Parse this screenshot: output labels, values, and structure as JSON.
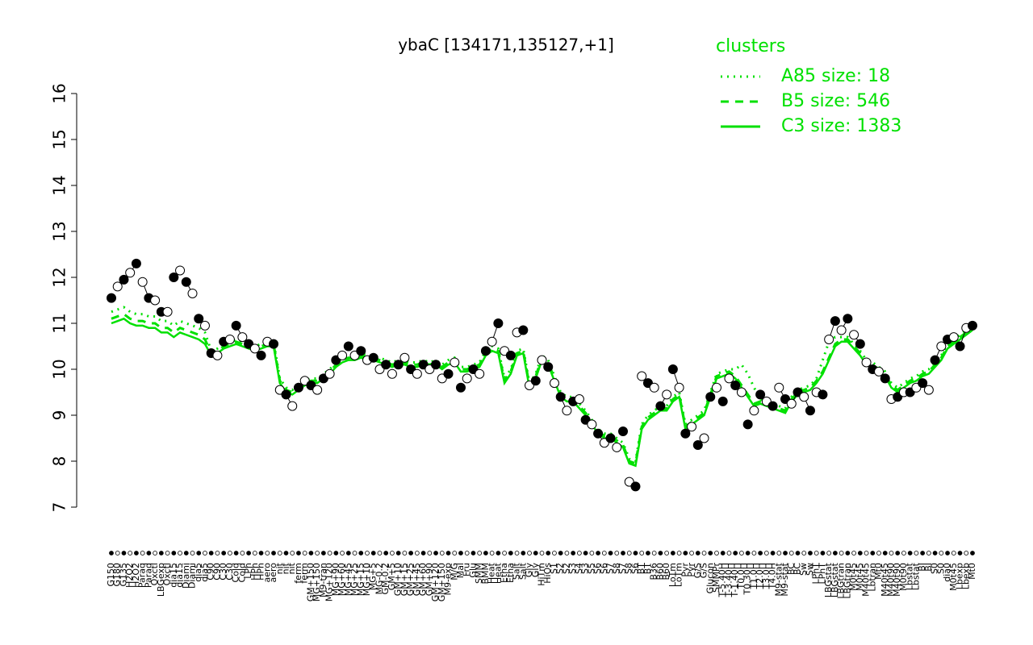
{
  "chart_data": {
    "type": "line",
    "title": "ybaC [134171,135127,+1]",
    "legend_title": "clusters",
    "legend": "top-right",
    "categories": [
      "G150",
      "G180",
      "G135",
      "H2O2",
      "H2O2",
      "Paraq",
      "Paraq",
      "Oxctl",
      "LBGexp",
      "Oxctl",
      "dia15",
      "dia15",
      "Diami",
      "Diami",
      "dia5",
      "dia5",
      "C90",
      "C90",
      "C30",
      "C30",
      "Cold",
      "Cold",
      "LPh",
      "HPh",
      "HPh",
      "aero",
      "aero",
      "nit",
      "nit",
      "nit",
      "ferm",
      "ferm",
      "GM+150",
      "MG+150",
      "M9-tran",
      "MG+120",
      "MG+90",
      "MG+60",
      "MG+45",
      "MG+25",
      "MG+15",
      "MG+10",
      "MG+5",
      "MG-0.2",
      "GM-0.2",
      "GM+5",
      "GM+10",
      "GM+15",
      "GM+25",
      "GM+45",
      "GM+60",
      "GM+90",
      "GM+120",
      "GM+150",
      "M9-exp",
      "M/G",
      "Mal",
      "Fru",
      "Glu",
      "SMM",
      "BMM",
      "Heat",
      "Heat",
      "Etha",
      "Etha",
      "Salt",
      "Salt",
      "Gly",
      "Gly",
      "HiTm",
      "HiOs",
      "S1",
      "S2",
      "S2",
      "S3",
      "S4",
      "S3",
      "S5",
      "S6",
      "S6",
      "S7",
      "S8",
      "S7",
      "S8",
      "S6",
      "BT",
      "BT",
      "B36",
      "B60",
      "B60",
      "LoTm",
      "LoTm",
      "Pyr",
      "Pyr",
      "G/S",
      "G/S",
      "Glucon",
      "SMMPr",
      "T-5.40H",
      "T-3.40H",
      "T-1.40H",
      "T0.0H",
      "T0.30H",
      "T1.0H",
      "T2.0H",
      "T3.0H",
      "T4.0H",
      "M9-stat",
      "M9-stat",
      "BC",
      "BC",
      "Sw",
      "Sw",
      "LPhT",
      "LPhT",
      "LBGstat",
      "LBGstat",
      "LBGtran",
      "LBGtran",
      "M0t45",
      "M0t45",
      "M40t45",
      "Lbtran",
      "Mt0",
      "M40t45",
      "M40t90",
      "M40t90",
      "M0t90",
      "Lbstat",
      "Lbstat",
      "BI",
      "BI",
      "S0",
      "S0",
      "dia0",
      "M0t45",
      "Lbexp",
      "Lbexp",
      "Mt0"
    ],
    "points": [
      11.55,
      11.8,
      11.95,
      12.1,
      12.3,
      11.9,
      11.55,
      11.5,
      11.25,
      11.25,
      12.0,
      12.15,
      11.9,
      11.65,
      11.1,
      10.95,
      10.35,
      10.3,
      10.6,
      10.65,
      10.95,
      10.7,
      10.55,
      10.45,
      10.3,
      10.6,
      10.55,
      9.55,
      9.45,
      9.2,
      9.6,
      9.75,
      9.65,
      9.55,
      9.8,
      9.9,
      10.2,
      10.3,
      10.5,
      10.3,
      10.4,
      10.2,
      10.25,
      10.0,
      10.1,
      9.9,
      10.1,
      10.25,
      10.0,
      9.9,
      10.1,
      10.0,
      10.1,
      9.8,
      9.9,
      10.15,
      9.6,
      9.8,
      10.0,
      9.9,
      10.4,
      10.6,
      11.0,
      10.4,
      10.3,
      10.8,
      10.85,
      9.65,
      9.75,
      10.2,
      10.05,
      9.7,
      9.4,
      9.1,
      9.3,
      9.35,
      8.9,
      8.8,
      8.6,
      8.4,
      8.5,
      8.3,
      8.65,
      7.55,
      7.45,
      9.85,
      9.7,
      9.6,
      9.2,
      9.45,
      10.0,
      9.6,
      8.6,
      8.75,
      8.35,
      8.5,
      9.4,
      9.6,
      9.3,
      9.8,
      9.65,
      9.5,
      8.8,
      9.1,
      9.45,
      9.3,
      9.2,
      9.6,
      9.35,
      9.25,
      9.5,
      9.4,
      9.1,
      9.5,
      9.45,
      10.65,
      11.05,
      10.85,
      11.1,
      10.75,
      10.55,
      10.15,
      10.0,
      9.95,
      9.8,
      9.35,
      9.4,
      9.5,
      9.5,
      9.6,
      9.7,
      9.55,
      10.2,
      10.5,
      10.65,
      10.7,
      10.5,
      10.9,
      10.95
    ],
    "point_color": "#000000",
    "series": [
      {
        "name": "A85 size: 18",
        "color": "#00e000",
        "linestyle": "dotted",
        "values": [
          11.25,
          11.3,
          11.35,
          11.25,
          11.2,
          11.2,
          11.15,
          11.15,
          11.05,
          11.05,
          10.95,
          11.05,
          11.0,
          10.95,
          10.9,
          10.8,
          10.4,
          10.45,
          10.55,
          10.6,
          10.65,
          10.6,
          10.55,
          10.5,
          10.55,
          10.6,
          10.6,
          9.8,
          9.6,
          9.55,
          9.65,
          9.75,
          9.8,
          9.8,
          9.9,
          10.0,
          10.15,
          10.25,
          10.3,
          10.3,
          10.35,
          10.3,
          10.3,
          10.25,
          10.2,
          10.15,
          10.2,
          10.2,
          10.15,
          10.15,
          10.2,
          10.15,
          10.2,
          10.1,
          10.2,
          10.25,
          10.05,
          10.05,
          10.1,
          10.15,
          10.4,
          10.5,
          10.45,
          9.8,
          10.0,
          10.4,
          10.45,
          9.7,
          9.9,
          10.3,
          10.2,
          9.85,
          9.5,
          9.4,
          9.4,
          9.25,
          9.1,
          8.9,
          8.7,
          8.6,
          8.6,
          8.5,
          8.4,
          8.05,
          8.0,
          8.8,
          9.0,
          9.1,
          9.2,
          9.2,
          9.4,
          9.5,
          8.8,
          8.9,
          9.0,
          9.1,
          9.5,
          9.9,
          9.95,
          10.0,
          10.0,
          10.1,
          9.9,
          9.6,
          9.35,
          9.3,
          9.25,
          9.2,
          9.15,
          9.4,
          9.55,
          9.6,
          9.65,
          9.8,
          10.2,
          10.6,
          10.7,
          10.7,
          10.7,
          10.55,
          10.4,
          10.2,
          10.15,
          10.05,
          9.95,
          9.7,
          9.6,
          9.7,
          9.8,
          9.85,
          9.95,
          10.0,
          10.15,
          10.3,
          10.55,
          10.65,
          10.75,
          10.85,
          10.95
        ]
      },
      {
        "name": "B5 size: 546",
        "color": "#00e000",
        "linestyle": "dashed",
        "values": [
          11.1,
          11.15,
          11.2,
          11.1,
          11.05,
          11.05,
          11.0,
          11.0,
          10.9,
          10.9,
          10.8,
          10.9,
          10.85,
          10.8,
          10.75,
          10.65,
          10.35,
          10.4,
          10.5,
          10.55,
          10.6,
          10.55,
          10.5,
          10.45,
          10.5,
          10.55,
          10.55,
          9.75,
          9.55,
          9.5,
          9.6,
          9.7,
          9.75,
          9.75,
          9.85,
          9.95,
          10.1,
          10.2,
          10.25,
          10.25,
          10.3,
          10.25,
          10.25,
          10.2,
          10.15,
          10.1,
          10.15,
          10.15,
          10.1,
          10.1,
          10.15,
          10.1,
          10.15,
          10.05,
          10.15,
          10.2,
          10.0,
          10.0,
          10.05,
          10.1,
          10.35,
          10.45,
          10.4,
          9.75,
          9.95,
          10.35,
          10.4,
          9.65,
          9.85,
          10.25,
          10.15,
          9.8,
          9.45,
          9.35,
          9.35,
          9.2,
          9.05,
          8.85,
          8.65,
          8.55,
          8.55,
          8.45,
          8.35,
          8.0,
          7.95,
          8.75,
          8.95,
          9.05,
          9.15,
          9.15,
          9.35,
          9.45,
          8.75,
          8.85,
          8.95,
          9.05,
          9.45,
          9.85,
          9.9,
          9.95,
          9.85,
          9.65,
          9.45,
          9.25,
          9.3,
          9.25,
          9.2,
          9.15,
          9.1,
          9.35,
          9.5,
          9.55,
          9.6,
          9.75,
          9.95,
          10.25,
          10.55,
          10.65,
          10.65,
          10.5,
          10.35,
          10.15,
          10.1,
          10.0,
          9.9,
          9.65,
          9.55,
          9.65,
          9.75,
          9.8,
          9.9,
          9.95,
          10.1,
          10.25,
          10.5,
          10.6,
          10.7,
          10.8,
          10.9
        ]
      },
      {
        "name": "C3 size: 1383",
        "color": "#00e000",
        "linestyle": "solid",
        "values": [
          11.0,
          11.05,
          11.1,
          11.0,
          10.95,
          10.95,
          10.9,
          10.9,
          10.8,
          10.8,
          10.7,
          10.8,
          10.75,
          10.7,
          10.65,
          10.55,
          10.3,
          10.35,
          10.45,
          10.5,
          10.55,
          10.5,
          10.45,
          10.4,
          10.45,
          10.5,
          10.5,
          9.7,
          9.5,
          9.45,
          9.55,
          9.65,
          9.7,
          9.7,
          9.8,
          9.9,
          10.05,
          10.15,
          10.2,
          10.2,
          10.25,
          10.2,
          10.2,
          10.15,
          10.1,
          10.05,
          10.1,
          10.1,
          10.05,
          10.05,
          10.1,
          10.05,
          10.1,
          10.0,
          10.1,
          10.15,
          9.95,
          9.95,
          10.0,
          10.05,
          10.3,
          10.4,
          10.35,
          9.7,
          9.9,
          10.3,
          10.35,
          9.6,
          9.8,
          10.2,
          10.1,
          9.75,
          9.4,
          9.3,
          9.3,
          9.15,
          9.0,
          8.8,
          8.6,
          8.5,
          8.5,
          8.4,
          8.3,
          7.95,
          7.9,
          8.7,
          8.9,
          9.0,
          9.1,
          9.1,
          9.3,
          9.4,
          8.7,
          8.8,
          8.9,
          9.0,
          9.4,
          9.8,
          9.85,
          9.9,
          9.8,
          9.6,
          9.4,
          9.2,
          9.25,
          9.2,
          9.15,
          9.1,
          9.05,
          9.3,
          9.45,
          9.5,
          9.55,
          9.7,
          9.9,
          10.2,
          10.5,
          10.6,
          10.6,
          10.45,
          10.3,
          10.1,
          10.05,
          9.95,
          9.85,
          9.6,
          9.5,
          9.6,
          9.7,
          9.75,
          9.85,
          9.9,
          10.05,
          10.2,
          10.45,
          10.55,
          10.65,
          10.75,
          10.85
        ]
      }
    ],
    "ylim": [
      7,
      16
    ],
    "yticks": [
      7,
      8,
      9,
      10,
      11,
      12,
      13,
      14,
      15,
      16
    ]
  }
}
